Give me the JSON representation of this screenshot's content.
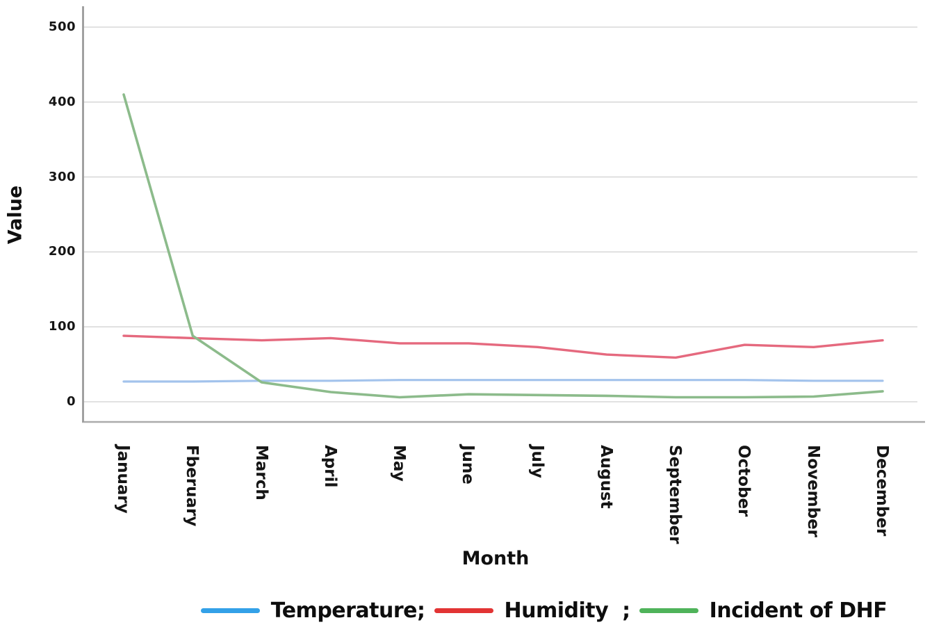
{
  "figure": {
    "background": "#ffffff",
    "axis_color": "#9b9b9b",
    "grid_color": "#d9d9d9"
  },
  "chart_data": {
    "type": "line",
    "title": "",
    "xlabel": "Month",
    "ylabel": "Value",
    "x": [
      "January",
      "Fberuary",
      "March",
      "April",
      "May",
      "June",
      "July",
      "August",
      "September",
      "October",
      "November",
      "December"
    ],
    "yticks": [
      "500",
      "400",
      "300",
      "200",
      "100",
      "0"
    ],
    "ytick_values": [
      500,
      400,
      300,
      200,
      100,
      0
    ],
    "ylim": [
      -27,
      527
    ],
    "grid": true,
    "legend_position": "bottom",
    "series": [
      {
        "name": "Temperature",
        "legend_label": "Temperature;",
        "line_color": "#a3c3ec",
        "legend_color": "#33a1e8",
        "values": [
          27,
          27,
          28,
          28,
          29,
          29,
          29,
          29,
          29,
          29,
          28,
          28
        ]
      },
      {
        "name": "Humidity",
        "legend_label": "Humidity  ;",
        "line_color": "#e5697e",
        "legend_color": "#e23434",
        "values": [
          88,
          85,
          82,
          85,
          78,
          78,
          73,
          63,
          59,
          76,
          73,
          82
        ]
      },
      {
        "name": "Incident of DHF",
        "legend_label": "Incident of DHF",
        "line_color": "#8cbb8b",
        "legend_color": "#4fb35a",
        "values": [
          410,
          88,
          26,
          13,
          6,
          10,
          9,
          8,
          6,
          6,
          7,
          14
        ]
      }
    ]
  }
}
